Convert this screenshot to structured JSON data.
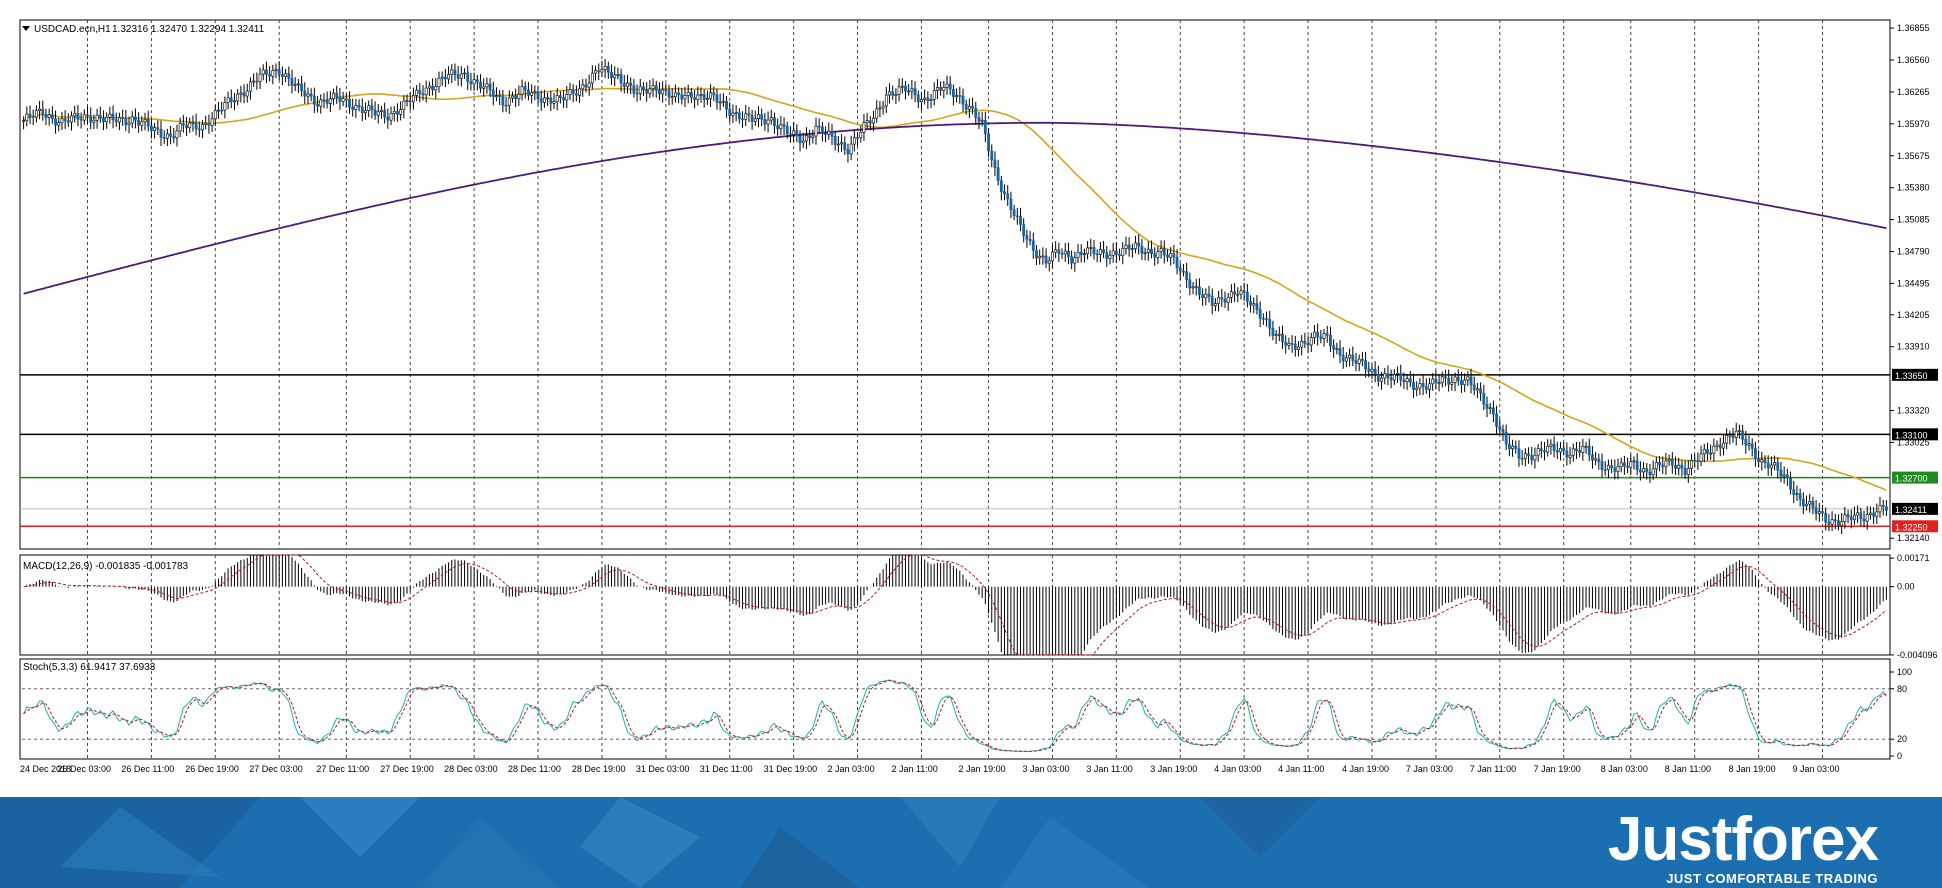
{
  "chart_data": [
    {
      "type": "candlestick",
      "title": "USDCAD.ecn,H1",
      "ohlc_readout": "1.32316 1.32470 1.32294 1.32411",
      "y_ticks": [
        "1.36855",
        "1.36560",
        "1.36265",
        "1.35970",
        "1.35675",
        "1.35380",
        "1.35085",
        "1.34790",
        "1.34495",
        "1.34205",
        "1.33910",
        "1.33320",
        "1.33025",
        "1.32140"
      ],
      "ylim": [
        1.3204,
        1.3693
      ],
      "x_tick_labels": [
        "24 Dec 2018",
        "26 Dec 03:00",
        "26 Dec 11:00",
        "26 Dec 19:00",
        "27 Dec 03:00",
        "27 Dec 11:00",
        "27 Dec 19:00",
        "28 Dec 03:00",
        "28 Dec 11:00",
        "28 Dec 19:00",
        "31 Dec 03:00",
        "31 Dec 11:00",
        "31 Dec 19:00",
        "2 Jan 03:00",
        "2 Jan 11:00",
        "2 Jan 19:00",
        "3 Jan 03:00",
        "3 Jan 11:00",
        "3 Jan 19:00",
        "4 Jan 03:00",
        "4 Jan 11:00",
        "4 Jan 19:00",
        "7 Jan 03:00",
        "7 Jan 11:00",
        "7 Jan 19:00",
        "8 Jan 03:00",
        "8 Jan 11:00",
        "8 Jan 19:00",
        "9 Jan 03:00"
      ],
      "close_path": [
        [
          0,
          1.36
        ],
        [
          6,
          1.3608
        ],
        [
          12,
          1.3598
        ],
        [
          20,
          1.3605
        ],
        [
          26,
          1.36
        ],
        [
          34,
          1.3602
        ],
        [
          40,
          1.3592
        ],
        [
          46,
          1.3586
        ],
        [
          50,
          1.3594
        ],
        [
          56,
          1.3596
        ],
        [
          60,
          1.3605
        ],
        [
          66,
          1.3622
        ],
        [
          70,
          1.363
        ],
        [
          74,
          1.364
        ],
        [
          80,
          1.3648
        ],
        [
          86,
          1.3628
        ],
        [
          92,
          1.3618
        ],
        [
          98,
          1.362
        ],
        [
          104,
          1.3614
        ],
        [
          110,
          1.3606
        ],
        [
          114,
          1.3605
        ],
        [
          120,
          1.3616
        ],
        [
          126,
          1.363
        ],
        [
          132,
          1.364
        ],
        [
          138,
          1.3643
        ],
        [
          144,
          1.363
        ],
        [
          150,
          1.3618
        ],
        [
          156,
          1.3626
        ],
        [
          162,
          1.3622
        ],
        [
          168,
          1.3618
        ],
        [
          174,
          1.363
        ],
        [
          180,
          1.3646
        ],
        [
          186,
          1.3642
        ],
        [
          192,
          1.3624
        ],
        [
          198,
          1.3632
        ],
        [
          204,
          1.362
        ],
        [
          210,
          1.3625
        ],
        [
          216,
          1.362
        ],
        [
          222,
          1.3608
        ],
        [
          228,
          1.36
        ],
        [
          234,
          1.3602
        ],
        [
          240,
          1.3586
        ],
        [
          244,
          1.3582
        ],
        [
          248,
          1.3594
        ],
        [
          254,
          1.358
        ],
        [
          258,
          1.3575
        ],
        [
          262,
          1.359
        ],
        [
          266,
          1.3602
        ],
        [
          270,
          1.3625
        ],
        [
          276,
          1.3628
        ],
        [
          282,
          1.362
        ],
        [
          288,
          1.363
        ],
        [
          292,
          1.3625
        ],
        [
          296,
          1.3612
        ],
        [
          300,
          1.3595
        ],
        [
          304,
          1.3555
        ],
        [
          308,
          1.3525
        ],
        [
          312,
          1.35
        ],
        [
          316,
          1.3482
        ],
        [
          320,
          1.347
        ],
        [
          324,
          1.3478
        ],
        [
          328,
          1.3474
        ],
        [
          332,
          1.348
        ],
        [
          336,
          1.3476
        ],
        [
          340,
          1.3478
        ],
        [
          344,
          1.348
        ],
        [
          348,
          1.3482
        ],
        [
          352,
          1.348
        ],
        [
          356,
          1.3478
        ],
        [
          360,
          1.347
        ],
        [
          364,
          1.3455
        ],
        [
          368,
          1.344
        ],
        [
          372,
          1.343
        ],
        [
          376,
          1.3438
        ],
        [
          380,
          1.3442
        ],
        [
          384,
          1.343
        ],
        [
          388,
          1.342
        ],
        [
          392,
          1.34
        ],
        [
          396,
          1.339
        ],
        [
          400,
          1.3395
        ],
        [
          404,
          1.34
        ],
        [
          408,
          1.3398
        ],
        [
          412,
          1.3385
        ],
        [
          416,
          1.3378
        ],
        [
          420,
          1.3372
        ],
        [
          424,
          1.3365
        ],
        [
          428,
          1.3362
        ],
        [
          432,
          1.336
        ],
        [
          436,
          1.3356
        ],
        [
          440,
          1.3354
        ],
        [
          444,
          1.336
        ],
        [
          448,
          1.3362
        ],
        [
          452,
          1.3358
        ],
        [
          456,
          1.3345
        ],
        [
          460,
          1.333
        ],
        [
          464,
          1.33
        ],
        [
          468,
          1.329
        ],
        [
          472,
          1.3292
        ],
        [
          476,
          1.3295
        ],
        [
          480,
          1.3296
        ],
        [
          484,
          1.3294
        ],
        [
          488,
          1.3296
        ],
        [
          492,
          1.3285
        ],
        [
          496,
          1.328
        ],
        [
          500,
          1.3278
        ],
        [
          504,
          1.3283
        ],
        [
          508,
          1.3276
        ],
        [
          512,
          1.328
        ],
        [
          516,
          1.3284
        ],
        [
          520,
          1.3278
        ],
        [
          524,
          1.3286
        ],
        [
          528,
          1.3296
        ],
        [
          532,
          1.3305
        ],
        [
          536,
          1.331
        ],
        [
          540,
          1.33
        ],
        [
          544,
          1.3285
        ],
        [
          548,
          1.3278
        ],
        [
          552,
          1.3268
        ],
        [
          556,
          1.325
        ],
        [
          560,
          1.324
        ],
        [
          564,
          1.3232
        ],
        [
          568,
          1.323
        ],
        [
          572,
          1.3232
        ],
        [
          576,
          1.3234
        ],
        [
          580,
          1.3241
        ]
      ],
      "series": [
        {
          "name": "",
          "kind": "ma_fast",
          "color": "#d4a51c"
        },
        {
          "name": "",
          "kind": "ma_slow",
          "color": "#4b1a7a"
        }
      ],
      "horizontal_levels": [
        {
          "value": 1.3365,
          "label": "1.33650",
          "color": "#000000"
        },
        {
          "value": 1.331,
          "label": "1.33100",
          "color": "#000000"
        },
        {
          "value": 1.327,
          "label": "1.32700",
          "color": "#1f8a1f"
        },
        {
          "value": 1.32411,
          "label": "1.32411",
          "color": "#000000"
        },
        {
          "value": 1.3225,
          "label": "1.32250",
          "color": "#e32020"
        }
      ],
      "candle_up_color": "#ffffff",
      "candle_down_color": "#1565a8",
      "grid": "vertical dashed"
    },
    {
      "type": "histogram",
      "title": "MACD(12,26,9) -0.001835 -0.001783",
      "y_ticks": [
        "0.00171",
        "0.00",
        "-0.004096"
      ],
      "ylim": [
        -0.0041,
        0.0019
      ],
      "signal_color": "#c01818",
      "bar_color": "#000000"
    },
    {
      "type": "line",
      "title": "Stoch(5,3,3) 61.9417 37.6933",
      "y_ticks": [
        "100",
        "80",
        "20",
        "0"
      ],
      "ylim": [
        0,
        100
      ],
      "levels": [
        80,
        20
      ],
      "main_color": "#20b0b0",
      "signal_color": "#c01818"
    }
  ],
  "footer": {
    "brand": "Justforex",
    "tagline": "JUST COMFORTABLE TRADING"
  }
}
